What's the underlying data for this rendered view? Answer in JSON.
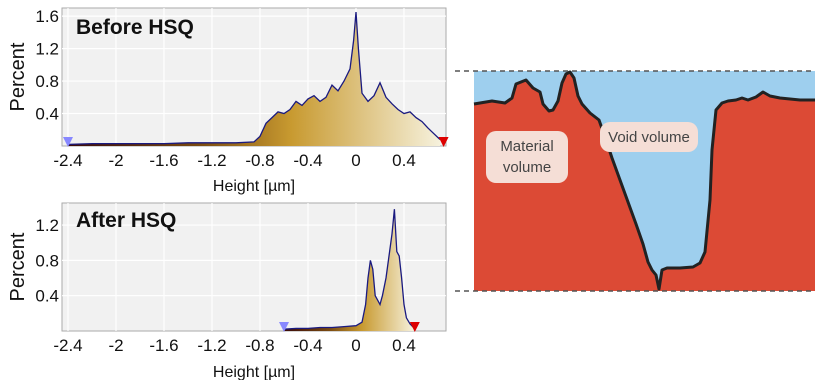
{
  "chart_data": [
    {
      "type": "area",
      "title": "Before HSQ",
      "xlabel": "Height [µm]",
      "ylabel": "Percent",
      "xlim": [
        -2.45,
        0.75
      ],
      "ylim": [
        0,
        1.7
      ],
      "xticks": [
        "-2.4",
        "-2",
        "-1.6",
        "-1.2",
        "-0.8",
        "-0.4",
        "0",
        "0.4"
      ],
      "xtick_values": [
        -2.4,
        -2.0,
        -1.6,
        -1.2,
        -0.8,
        -0.4,
        0.0,
        0.4
      ],
      "yticks": [
        "0.4",
        "0.8",
        "1.2",
        "1.6"
      ],
      "ytick_values": [
        0.4,
        0.8,
        1.2,
        1.6
      ],
      "grid": true,
      "x": [
        -2.4,
        -2.2,
        -2.0,
        -1.8,
        -1.6,
        -1.4,
        -1.2,
        -1.0,
        -0.85,
        -0.8,
        -0.75,
        -0.7,
        -0.65,
        -0.6,
        -0.55,
        -0.5,
        -0.45,
        -0.4,
        -0.35,
        -0.3,
        -0.25,
        -0.2,
        -0.15,
        -0.1,
        -0.05,
        -0.02,
        0.0,
        0.02,
        0.05,
        0.1,
        0.15,
        0.2,
        0.25,
        0.3,
        0.35,
        0.4,
        0.45,
        0.5,
        0.55,
        0.6,
        0.65,
        0.7
      ],
      "y": [
        0.02,
        0.03,
        0.03,
        0.03,
        0.03,
        0.04,
        0.04,
        0.04,
        0.05,
        0.12,
        0.28,
        0.35,
        0.42,
        0.4,
        0.45,
        0.55,
        0.5,
        0.58,
        0.62,
        0.55,
        0.6,
        0.75,
        0.68,
        0.8,
        0.95,
        1.3,
        1.65,
        1.2,
        0.65,
        0.55,
        0.62,
        0.78,
        0.6,
        0.52,
        0.45,
        0.4,
        0.42,
        0.35,
        0.3,
        0.22,
        0.15,
        0.08
      ],
      "markers": [
        {
          "x": -2.4,
          "color": "#8888ff"
        },
        {
          "x": 0.73,
          "color": "#dd0000"
        }
      ],
      "line_color": "#1a1a80",
      "fill_colors": [
        "#3a0a0a",
        "#7a4a10",
        "#c89a30",
        "#f6f1dc"
      ]
    },
    {
      "type": "area",
      "title": "After HSQ",
      "xlabel": "Height [µm]",
      "ylabel": "Percent",
      "xlim": [
        -2.45,
        0.75
      ],
      "ylim": [
        0,
        1.45
      ],
      "xticks": [
        "-2.4",
        "-2",
        "-1.6",
        "-1.2",
        "-0.8",
        "-0.4",
        "0",
        "0.4"
      ],
      "xtick_values": [
        -2.4,
        -2.0,
        -1.6,
        -1.2,
        -0.8,
        -0.4,
        0.0,
        0.4
      ],
      "yticks": [
        "0.4",
        "0.8",
        "1.2"
      ],
      "ytick_values": [
        0.4,
        0.8,
        1.2
      ],
      "grid": true,
      "x": [
        -0.6,
        -0.5,
        -0.4,
        -0.3,
        -0.2,
        -0.1,
        0.0,
        0.05,
        0.08,
        0.1,
        0.12,
        0.14,
        0.16,
        0.18,
        0.2,
        0.22,
        0.25,
        0.28,
        0.3,
        0.32,
        0.34,
        0.36,
        0.38,
        0.4,
        0.42,
        0.45,
        0.48
      ],
      "y": [
        0.02,
        0.03,
        0.03,
        0.04,
        0.04,
        0.05,
        0.06,
        0.1,
        0.3,
        0.6,
        0.8,
        0.7,
        0.4,
        0.35,
        0.3,
        0.4,
        0.6,
        0.9,
        1.1,
        1.38,
        0.9,
        0.85,
        0.6,
        0.3,
        0.15,
        0.08,
        0.04
      ],
      "markers": [
        {
          "x": -0.6,
          "color": "#8888ff"
        },
        {
          "x": 0.49,
          "color": "#dd0000"
        }
      ],
      "line_color": "#1a1a80",
      "fill_colors": [
        "#3a0a0a",
        "#7a4a10",
        "#c89a30",
        "#f6f1dc"
      ]
    }
  ],
  "diagram": {
    "material_label": [
      "Material",
      "volume"
    ],
    "void_label": "Void volume",
    "material_color": "#dc4a35",
    "void_color": "#9ecfee",
    "surface_color": "#222222",
    "label_bg": "#f5ded6"
  }
}
